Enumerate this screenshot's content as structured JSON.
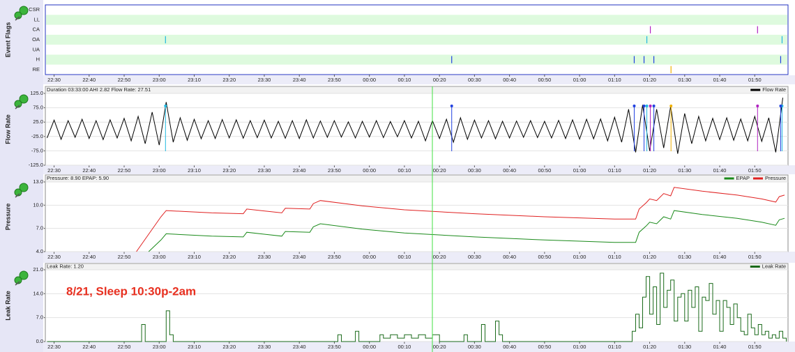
{
  "chart_data": [
    {
      "type": "events",
      "title": "Event Flags",
      "categories": [
        "CSR",
        "LL",
        "CA",
        "OA",
        "UA",
        "H",
        "RE"
      ],
      "colors": [
        null,
        null,
        "#b020c0",
        "#20b8e0",
        null,
        "#2040e0",
        "#f0b000"
      ],
      "events": [
        [],
        [],
        [
          200.2,
          230.8
        ],
        [
          61.8,
          199.2,
          237.8
        ],
        [],
        [
          143.5,
          195.6,
          198.4,
          201.2,
          237.4
        ],
        [
          206.1
        ]
      ],
      "xlim": [
        27.5,
        239.5
      ],
      "xticks": [
        {
          "value": 30,
          "label": "22:30"
        },
        {
          "value": 40,
          "label": "22:40"
        },
        {
          "value": 50,
          "label": "22:50"
        },
        {
          "value": 60,
          "label": "23:00"
        },
        {
          "value": 70,
          "label": "23:10"
        },
        {
          "value": 80,
          "label": "23:20"
        },
        {
          "value": 90,
          "label": "23:30"
        },
        {
          "value": 100,
          "label": "23:40"
        },
        {
          "value": 110,
          "label": "23:50"
        },
        {
          "value": 120,
          "label": "00:00"
        },
        {
          "value": 130,
          "label": "00:10"
        },
        {
          "value": 140,
          "label": "00:20"
        },
        {
          "value": 150,
          "label": "00:30"
        },
        {
          "value": 160,
          "label": "00:40"
        },
        {
          "value": 170,
          "label": "00:50"
        },
        {
          "value": 180,
          "label": "01:00"
        },
        {
          "value": 190,
          "label": "01:10"
        },
        {
          "value": 200,
          "label": "01:20"
        },
        {
          "value": 210,
          "label": "01:30"
        },
        {
          "value": 220,
          "label": "01:40"
        },
        {
          "value": 230,
          "label": "01:50"
        }
      ]
    },
    {
      "type": "line",
      "title": "Flow Rate",
      "header": "Duration 03:33:00 AHI 2.82 Flow Rate: 27.51",
      "grid": true,
      "series": [
        {
          "name": "Flow Rate",
          "color": "#000000",
          "x": [
            28,
            30,
            32,
            34,
            36,
            38,
            40,
            42,
            44,
            46,
            48,
            50,
            52,
            54,
            56,
            58,
            60,
            62,
            64,
            66,
            68,
            70,
            72,
            74,
            76,
            78,
            80,
            82,
            84,
            86,
            88,
            90,
            92,
            94,
            96,
            98,
            100,
            102,
            104,
            106,
            108,
            110,
            112,
            114,
            116,
            118,
            120,
            122,
            124,
            126,
            128,
            130,
            132,
            134,
            136,
            138,
            140,
            142,
            144,
            146,
            148,
            150,
            152,
            154,
            156,
            158,
            160,
            162,
            164,
            166,
            168,
            170,
            172,
            174,
            176,
            178,
            180,
            182,
            184,
            186,
            188,
            190,
            192,
            194,
            196,
            198,
            200,
            202,
            204,
            206,
            208,
            210,
            212,
            214,
            216,
            218,
            220,
            222,
            224,
            226,
            228,
            230,
            232,
            234,
            236,
            238
          ],
          "values": [
            -30,
            32,
            -35,
            30,
            -28,
            35,
            -32,
            30,
            -36,
            33,
            -30,
            38,
            -40,
            45,
            -50,
            60,
            -55,
            95,
            -45,
            40,
            -38,
            35,
            -33,
            30,
            -32,
            34,
            -30,
            33,
            -31,
            30,
            -29,
            32,
            -30,
            28,
            -31,
            30,
            -32,
            33,
            -30,
            29,
            -28,
            30,
            -27,
            26,
            -30,
            28,
            -27,
            30,
            -29,
            27,
            -26,
            30,
            -30,
            28,
            -40,
            30,
            -32,
            35,
            -45,
            40,
            -35,
            32,
            -30,
            30,
            -33,
            28,
            -30,
            29,
            -28,
            30,
            -29,
            28,
            -30,
            31,
            -32,
            33,
            -34,
            35,
            -33,
            36,
            -40,
            42,
            -45,
            70,
            -80,
            85,
            -75,
            70,
            -65,
            80,
            -85,
            55,
            -50,
            45,
            -40,
            38,
            -36,
            40,
            -38,
            36,
            -40,
            45,
            -42,
            40,
            -80,
            110
          ]
        }
      ],
      "ylim": [
        -125,
        125
      ],
      "yticks": [
        {
          "value": -125,
          "label": "-125.0"
        },
        {
          "value": -75,
          "label": "-75.0"
        },
        {
          "value": -25,
          "label": "-25.0"
        },
        {
          "value": 25,
          "label": "25.0"
        },
        {
          "value": 75,
          "label": "75.0"
        },
        {
          "value": 125,
          "label": "125.0"
        }
      ],
      "xlim": [
        27.5,
        239.5
      ],
      "xticks": [
        {
          "value": 30,
          "label": "22:30"
        },
        {
          "value": 40,
          "label": "22:40"
        },
        {
          "value": 50,
          "label": "22:50"
        },
        {
          "value": 60,
          "label": "23:00"
        },
        {
          "value": 70,
          "label": "23:10"
        },
        {
          "value": 80,
          "label": "23:20"
        },
        {
          "value": 90,
          "label": "23:30"
        },
        {
          "value": 100,
          "label": "23:40"
        },
        {
          "value": 110,
          "label": "23:50"
        },
        {
          "value": 120,
          "label": "00:00"
        },
        {
          "value": 130,
          "label": "00:10"
        },
        {
          "value": 140,
          "label": "00:20"
        },
        {
          "value": 150,
          "label": "00:30"
        },
        {
          "value": 160,
          "label": "00:40"
        },
        {
          "value": 170,
          "label": "00:50"
        },
        {
          "value": 180,
          "label": "01:00"
        },
        {
          "value": 190,
          "label": "01:10"
        },
        {
          "value": 200,
          "label": "01:20"
        },
        {
          "value": 210,
          "label": "01:30"
        },
        {
          "value": 220,
          "label": "01:40"
        },
        {
          "value": 230,
          "label": "01:50"
        }
      ]
    },
    {
      "type": "line",
      "title": "Pressure",
      "header": "Pressure: 8.90 EPAP: 5.90",
      "grid": true,
      "series": [
        {
          "name": "EPAP",
          "color": "#1a8a1a",
          "x": [
            57,
            60.5,
            62,
            75,
            84,
            85,
            95,
            96,
            103,
            104,
            106,
            118,
            130,
            150,
            170,
            190,
            196,
            197,
            199,
            200,
            202,
            204,
            206,
            207,
            215,
            225,
            232,
            236,
            237,
            238.5
          ],
          "values": [
            4.0,
            5.5,
            6.3,
            6.0,
            5.9,
            6.5,
            6.0,
            6.6,
            6.5,
            7.2,
            7.6,
            6.9,
            6.4,
            5.9,
            5.5,
            5.2,
            5.2,
            6.5,
            7.3,
            7.8,
            7.6,
            8.5,
            8.2,
            9.3,
            8.8,
            8.3,
            7.8,
            7.4,
            8.1,
            8.3
          ]
        },
        {
          "name": "Pressure",
          "color": "#e02020",
          "x": [
            53.5,
            60.5,
            62,
            75,
            84,
            85,
            95,
            96,
            103,
            104,
            106,
            118,
            130,
            150,
            170,
            190,
            196,
            197,
            199,
            200,
            202,
            204,
            206,
            207,
            215,
            225,
            232,
            236,
            237,
            238.5
          ],
          "values": [
            4.0,
            8.5,
            9.3,
            9.0,
            8.9,
            9.5,
            9.0,
            9.6,
            9.5,
            10.2,
            10.6,
            9.9,
            9.4,
            8.9,
            8.5,
            8.2,
            8.2,
            9.5,
            10.3,
            10.8,
            10.6,
            11.5,
            11.2,
            12.3,
            11.8,
            11.3,
            10.8,
            10.4,
            11.1,
            11.3
          ]
        }
      ],
      "ylim": [
        4,
        13
      ],
      "yticks": [
        {
          "value": 4,
          "label": "4.0"
        },
        {
          "value": 7,
          "label": "7.0"
        },
        {
          "value": 10,
          "label": "10.0"
        },
        {
          "value": 13,
          "label": "13.0"
        }
      ],
      "xlim": [
        27.5,
        239.5
      ],
      "xticks": [
        {
          "value": 30,
          "label": "22:30"
        },
        {
          "value": 40,
          "label": "22:40"
        },
        {
          "value": 50,
          "label": "22:50"
        },
        {
          "value": 60,
          "label": "23:00"
        },
        {
          "value": 70,
          "label": "23:10"
        },
        {
          "value": 80,
          "label": "23:20"
        },
        {
          "value": 90,
          "label": "23:30"
        },
        {
          "value": 100,
          "label": "23:40"
        },
        {
          "value": 110,
          "label": "23:50"
        },
        {
          "value": 120,
          "label": "00:00"
        },
        {
          "value": 130,
          "label": "00:10"
        },
        {
          "value": 140,
          "label": "00:20"
        },
        {
          "value": 150,
          "label": "00:30"
        },
        {
          "value": 160,
          "label": "00:40"
        },
        {
          "value": 170,
          "label": "00:50"
        },
        {
          "value": 180,
          "label": "01:00"
        },
        {
          "value": 190,
          "label": "01:10"
        },
        {
          "value": 200,
          "label": "01:20"
        },
        {
          "value": 210,
          "label": "01:30"
        },
        {
          "value": 220,
          "label": "01:40"
        },
        {
          "value": 230,
          "label": "01:50"
        }
      ]
    },
    {
      "type": "line",
      "title": "Leak Rate",
      "header": "Leak Rate: 1.20",
      "grid": true,
      "drawstyle": "steps",
      "annotation": "8/21, Sleep 10:30p-2am",
      "series": [
        {
          "name": "Leak Rate",
          "color": "#1a6a1a",
          "x": [
            28,
            54,
            55,
            56,
            61,
            62,
            63,
            64,
            110,
            111,
            112,
            115,
            116,
            117,
            122,
            123,
            124,
            126,
            128,
            130,
            132,
            134,
            136,
            138,
            140,
            146,
            147,
            148,
            150,
            152,
            153,
            155,
            156,
            157,
            158,
            194,
            195,
            196,
            197,
            198,
            199,
            200,
            201,
            202,
            203,
            204,
            205,
            206,
            207,
            208,
            209,
            210,
            211,
            212,
            213,
            214,
            215,
            216,
            217,
            218,
            219,
            220,
            221,
            222,
            223,
            224,
            225,
            226,
            227,
            228,
            229,
            230,
            231,
            232,
            233,
            234,
            235,
            236,
            237,
            238,
            239
          ],
          "values": [
            0,
            0,
            5,
            0,
            0,
            9,
            2,
            0,
            0,
            2,
            0,
            0,
            3,
            0,
            0,
            2,
            1,
            2,
            1,
            2,
            1,
            2,
            1,
            2,
            0,
            0,
            2,
            0,
            0,
            5,
            0,
            0,
            6,
            2,
            0,
            0,
            3,
            8,
            4,
            13,
            19,
            8,
            16,
            5,
            20,
            10,
            15,
            18,
            6,
            13,
            14,
            6,
            15,
            10,
            16,
            3,
            13,
            12,
            17,
            8,
            12,
            3,
            12,
            10,
            5,
            11,
            7,
            3,
            2,
            8,
            4,
            2,
            5,
            2,
            3,
            1,
            2,
            1,
            3,
            1,
            0
          ]
        }
      ],
      "ylim": [
        0,
        21
      ],
      "yticks": [
        {
          "value": 0,
          "label": "0.0"
        },
        {
          "value": 7,
          "label": "7.0"
        },
        {
          "value": 14,
          "label": "14.0"
        },
        {
          "value": 21,
          "label": "21.0"
        }
      ],
      "xlim": [
        27.5,
        239.5
      ],
      "xticks": [
        {
          "value": 30,
          "label": "22:30"
        },
        {
          "value": 40,
          "label": "22:40"
        },
        {
          "value": 50,
          "label": "22:50"
        },
        {
          "value": 60,
          "label": "23:00"
        },
        {
          "value": 70,
          "label": "23:10"
        },
        {
          "value": 80,
          "label": "23:20"
        },
        {
          "value": 90,
          "label": "23:30"
        },
        {
          "value": 100,
          "label": "23:40"
        },
        {
          "value": 110,
          "label": "23:50"
        },
        {
          "value": 120,
          "label": "00:00"
        },
        {
          "value": 130,
          "label": "00:10"
        },
        {
          "value": 140,
          "label": "00:20"
        },
        {
          "value": 150,
          "label": "00:30"
        },
        {
          "value": 160,
          "label": "00:40"
        },
        {
          "value": 170,
          "label": "00:50"
        },
        {
          "value": 180,
          "label": "01:00"
        },
        {
          "value": 190,
          "label": "01:10"
        },
        {
          "value": 200,
          "label": "01:20"
        },
        {
          "value": 210,
          "label": "01:30"
        },
        {
          "value": 220,
          "label": "01:40"
        },
        {
          "value": 230,
          "label": "01:50"
        }
      ]
    }
  ]
}
